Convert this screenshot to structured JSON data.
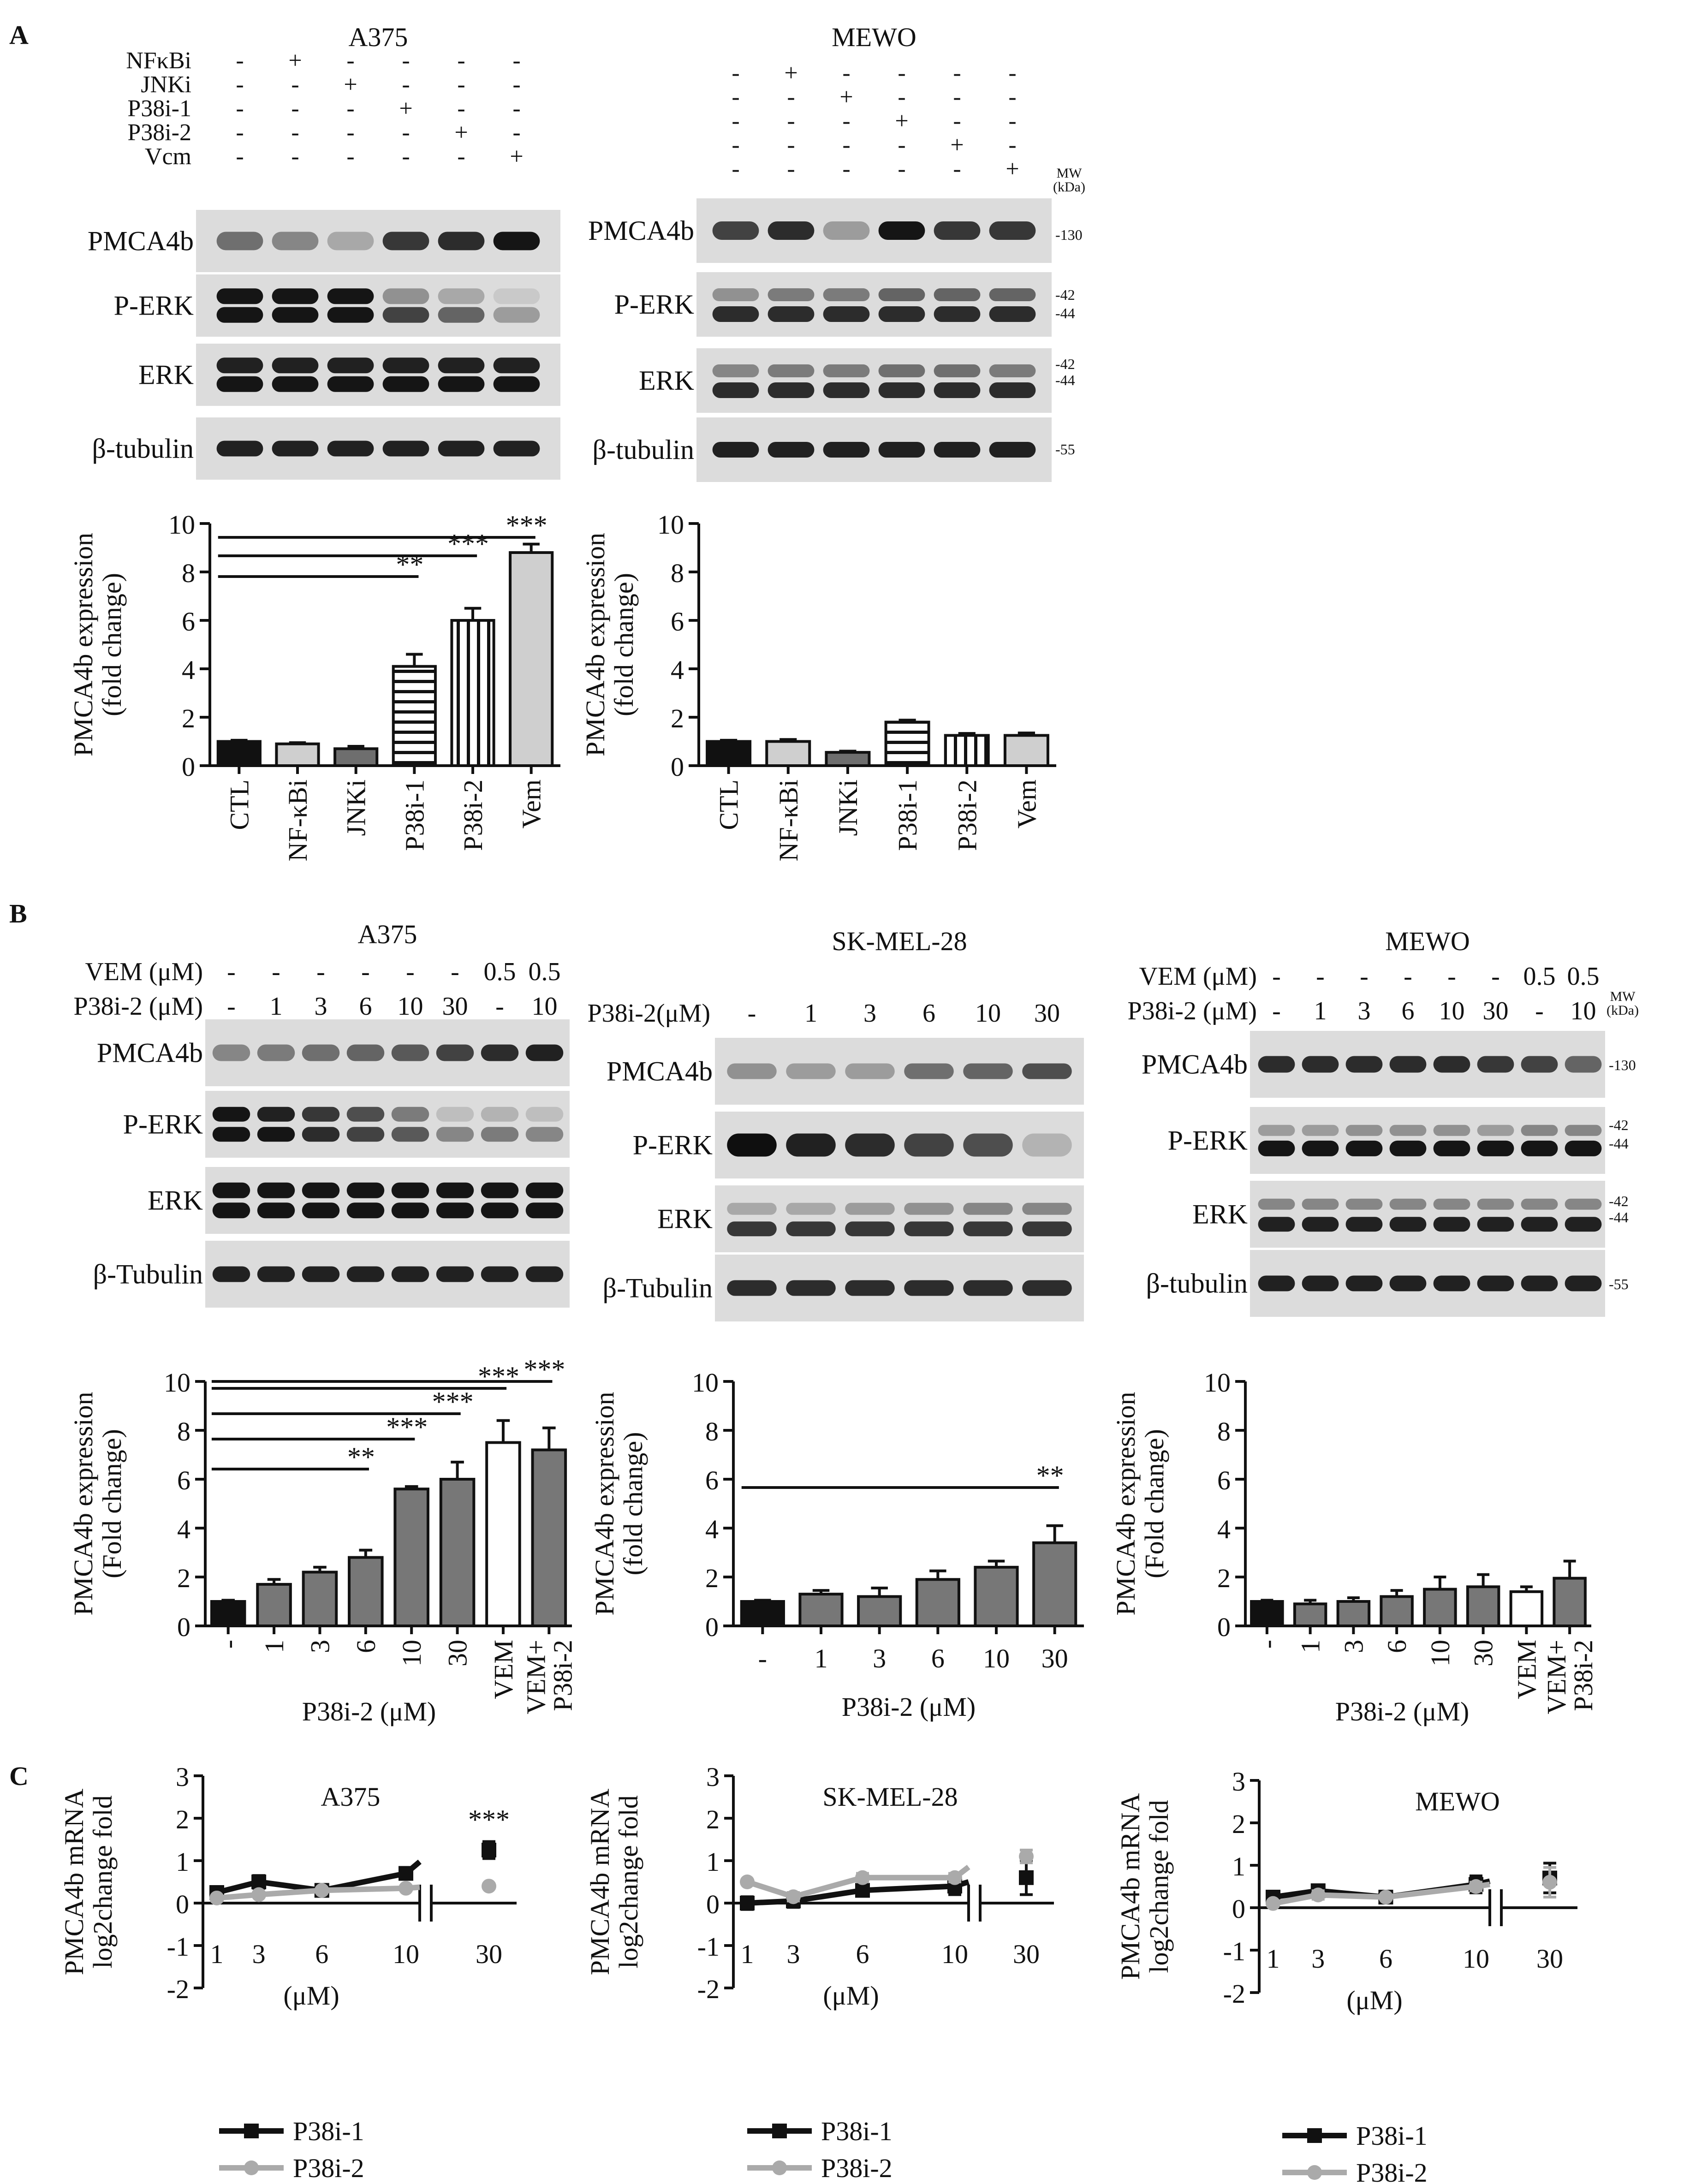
{
  "figure": {
    "panel_labels": {
      "A": "A",
      "B": "B",
      "C": "C"
    },
    "mw_header": [
      "MW",
      "(kDa)"
    ],
    "mw_labels": {
      "k130": "-130",
      "k42": "-42",
      "k44": "-44",
      "k55": "-55"
    }
  },
  "panel_a": {
    "blots": [
      {
        "title": "A375",
        "treatments": [
          {
            "label": "NFκBi",
            "marks": [
              "-",
              "+",
              "-",
              "-",
              "-",
              "-"
            ]
          },
          {
            "label": "JNKi",
            "marks": [
              "-",
              "-",
              "+",
              "-",
              "-",
              "-"
            ]
          },
          {
            "label": "P38i-1",
            "marks": [
              "-",
              "-",
              "-",
              "+",
              "-",
              "-"
            ]
          },
          {
            "label": "P38i-2",
            "marks": [
              "-",
              "-",
              "-",
              "-",
              "+",
              "-"
            ]
          },
          {
            "label": "Vcm",
            "marks": [
              "-",
              "-",
              "-",
              "-",
              "-",
              "+"
            ]
          }
        ],
        "rows": [
          "PMCA4b",
          "P-ERK",
          "ERK",
          "β-tubulin"
        ]
      },
      {
        "title": "MEWO",
        "treatments": [
          {
            "label": "",
            "marks": [
              "-",
              "+",
              "-",
              "-",
              "-",
              "-"
            ]
          },
          {
            "label": "",
            "marks": [
              "-",
              "-",
              "+",
              "-",
              "-",
              "-"
            ]
          },
          {
            "label": "",
            "marks": [
              "-",
              "-",
              "-",
              "+",
              "-",
              "-"
            ]
          },
          {
            "label": "",
            "marks": [
              "-",
              "-",
              "-",
              "-",
              "+",
              "-"
            ]
          },
          {
            "label": "",
            "marks": [
              "-",
              "-",
              "-",
              "-",
              "-",
              "+"
            ]
          }
        ],
        "rows": [
          "PMCA4b",
          "P-ERK",
          "ERK",
          "β-tubulin"
        ]
      }
    ]
  },
  "panel_b": {
    "blots": [
      {
        "title": "A375",
        "treatments": [
          {
            "label": "VEM (μM)",
            "marks": [
              "-",
              "-",
              "-",
              "-",
              "-",
              "-",
              "0.5",
              "0.5"
            ]
          },
          {
            "label": "P38i-2 (μM)",
            "marks": [
              "-",
              "1",
              "3",
              "6",
              "10",
              "30",
              "-",
              "10"
            ]
          }
        ],
        "rows": [
          "PMCA4b",
          "P-ERK",
          "ERK",
          "β-Tubulin"
        ]
      },
      {
        "title": "SK-MEL-28",
        "treatments": [
          {
            "label": "P38i-2(μM)",
            "marks": [
              "-",
              "1",
              "3",
              "6",
              "10",
              "30"
            ]
          }
        ],
        "rows": [
          "PMCA4b",
          "P-ERK",
          "ERK",
          "β-Tubulin"
        ]
      },
      {
        "title": "MEWO",
        "treatments": [
          {
            "label": "VEM (μM)",
            "marks": [
              "-",
              "-",
              "-",
              "-",
              "-",
              "-",
              "0.5",
              "0.5"
            ]
          },
          {
            "label": "P38i-2 (μM)",
            "marks": [
              "-",
              "1",
              "3",
              "6",
              "10",
              "30",
              "-",
              "10"
            ]
          }
        ],
        "rows": [
          "PMCA4b",
          "P-ERK",
          "ERK",
          "β-tubulin"
        ]
      }
    ]
  },
  "panel_c_legend": {
    "s1": "P38i-1",
    "s2": "P38i-2"
  },
  "chart_data": [
    {
      "id": "A1",
      "type": "bar",
      "panel": "A",
      "cell_line": "A375",
      "categories": [
        "CTL",
        "NF-κBi",
        "JNKi",
        "P38i-1",
        "P38i-2",
        "Vem"
      ],
      "values": [
        1.0,
        0.9,
        0.7,
        4.1,
        6.0,
        8.8
      ],
      "errors": [
        0.05,
        0.05,
        0.1,
        0.5,
        0.5,
        0.35
      ],
      "patterns": [
        "black",
        "lightgray",
        "darkgray",
        "hstripe",
        "vstripe",
        "lightgray"
      ],
      "ylabel": [
        "PMCA4b expression",
        "(fold change)"
      ],
      "xlabel": "",
      "ylim": [
        0,
        10
      ],
      "yticks": [
        0,
        2,
        4,
        6,
        8,
        10
      ],
      "significance": [
        {
          "from": 0,
          "to": 3,
          "label": "**"
        },
        {
          "from": 0,
          "to": 4,
          "label": "***"
        },
        {
          "from": 0,
          "to": 5,
          "label": "***"
        }
      ]
    },
    {
      "id": "A2",
      "type": "bar",
      "panel": "A",
      "cell_line": "MEWO",
      "categories": [
        "CTL",
        "NF-κBi",
        "JNKi",
        "P38i-1",
        "P38i-2",
        "Vem"
      ],
      "values": [
        1.0,
        1.0,
        0.55,
        1.8,
        1.25,
        1.25
      ],
      "errors": [
        0.05,
        0.08,
        0.05,
        0.08,
        0.08,
        0.1
      ],
      "patterns": [
        "black",
        "lightgray",
        "darkgray",
        "hstripe",
        "vstripe",
        "lightgray"
      ],
      "ylabel": [
        "PMCA4b expression",
        "(fold change)"
      ],
      "xlabel": "",
      "ylim": [
        0,
        10
      ],
      "yticks": [
        0,
        2,
        4,
        6,
        8,
        10
      ],
      "significance": []
    },
    {
      "id": "B1",
      "type": "bar",
      "panel": "B",
      "cell_line": "A375",
      "categories": [
        "-",
        "1",
        "3",
        "6",
        "10",
        "30",
        "VEM",
        "VEM+ P38i-2"
      ],
      "values": [
        1.0,
        1.7,
        2.2,
        2.8,
        5.6,
        6.0,
        7.5,
        7.2
      ],
      "errors": [
        0.05,
        0.2,
        0.2,
        0.3,
        0.1,
        0.7,
        0.9,
        0.9
      ],
      "patterns": [
        "black",
        "gray",
        "gray",
        "gray",
        "gray",
        "gray",
        "white",
        "gray"
      ],
      "ylabel": [
        "PMCA4b expression",
        "(Fold change)"
      ],
      "xlabel": "P38i-2 (μM)",
      "ylim": [
        0,
        10
      ],
      "yticks": [
        0,
        2,
        4,
        6,
        8,
        10
      ],
      "significance": [
        {
          "from": 0,
          "to": 3,
          "label": "**"
        },
        {
          "from": 0,
          "to": 4,
          "label": "***"
        },
        {
          "from": 0,
          "to": 5,
          "label": "***"
        },
        {
          "from": 0,
          "to": 6,
          "label": "***"
        },
        {
          "from": 0,
          "to": 7,
          "label": "***"
        }
      ]
    },
    {
      "id": "B2",
      "type": "bar",
      "panel": "B",
      "cell_line": "SK-MEL-28",
      "categories": [
        "-",
        "1",
        "3",
        "6",
        "10",
        "30"
      ],
      "values": [
        1.0,
        1.3,
        1.2,
        1.9,
        2.4,
        3.4
      ],
      "errors": [
        0.05,
        0.15,
        0.35,
        0.35,
        0.25,
        0.7
      ],
      "patterns": [
        "black",
        "gray",
        "gray",
        "gray",
        "gray",
        "gray"
      ],
      "ylabel": [
        "PMCA4b expression",
        "(fold change)"
      ],
      "xlabel": "P38i-2 (μM)",
      "ylim": [
        0,
        10
      ],
      "yticks": [
        0,
        2,
        4,
        6,
        8,
        10
      ],
      "significance": [
        {
          "from": 0,
          "to": 5,
          "label": "**"
        }
      ]
    },
    {
      "id": "B3",
      "type": "bar",
      "panel": "B",
      "cell_line": "MEWO",
      "categories": [
        "-",
        "1",
        "3",
        "6",
        "10",
        "30",
        "VEM",
        "VEM+ P38i-2"
      ],
      "values": [
        1.0,
        0.9,
        1.0,
        1.2,
        1.5,
        1.6,
        1.4,
        1.95
      ],
      "errors": [
        0.05,
        0.15,
        0.15,
        0.25,
        0.5,
        0.5,
        0.2,
        0.7
      ],
      "patterns": [
        "black",
        "gray",
        "gray",
        "gray",
        "gray",
        "gray",
        "white",
        "gray"
      ],
      "ylabel": [
        "PMCA4b expression",
        "(Fold change)"
      ],
      "xlabel": "P38i-2 (μM)",
      "ylim": [
        0,
        10
      ],
      "yticks": [
        0,
        2,
        4,
        6,
        8,
        10
      ],
      "significance": []
    },
    {
      "id": "C1",
      "type": "line",
      "panel": "C",
      "title": "A375",
      "x": [
        1,
        3,
        6,
        10,
        30
      ],
      "xticks": [
        "1",
        "3",
        "6",
        "10",
        "30"
      ],
      "xlabel": "(μM)",
      "ylabel": [
        "PMCA4b mRNA",
        "log2change fold"
      ],
      "ylim": [
        -2,
        3
      ],
      "yticks": [
        -2,
        -1,
        0,
        1,
        2,
        3
      ],
      "series": [
        {
          "name": "P38i-1",
          "values": [
            0.25,
            0.5,
            0.3,
            0.7,
            1.25
          ],
          "errors": [
            0.05,
            0.15,
            0.05,
            0.12,
            0.2
          ],
          "color": "#111111"
        },
        {
          "name": "P38i-2",
          "values": [
            0.12,
            0.2,
            0.3,
            0.35,
            0.4
          ],
          "errors": [
            0.03,
            0.03,
            0.03,
            0.03,
            0.03
          ],
          "color": "#aaaaaa"
        }
      ],
      "annotations": [
        {
          "x": 30,
          "label": "***"
        }
      ]
    },
    {
      "id": "C2",
      "type": "line",
      "panel": "C",
      "title": "SK-MEL-28",
      "x": [
        1,
        3,
        6,
        10,
        30
      ],
      "xticks": [
        "1",
        "3",
        "6",
        "10",
        "30"
      ],
      "xlabel": "(μM)",
      "ylabel": [
        "PMCA4b mRNA",
        "log2change fold"
      ],
      "ylim": [
        -2,
        3
      ],
      "yticks": [
        -2,
        -1,
        0,
        1,
        2,
        3
      ],
      "series": [
        {
          "name": "P38i-1",
          "values": [
            0.0,
            0.05,
            0.3,
            0.4,
            0.6
          ],
          "errors": [
            0.15,
            0.15,
            0.1,
            0.2,
            0.4
          ],
          "color": "#111111"
        },
        {
          "name": "P38i-2",
          "values": [
            0.5,
            0.15,
            0.6,
            0.6,
            1.1
          ],
          "errors": [
            0.05,
            0.1,
            0.1,
            0.1,
            0.15
          ],
          "color": "#aaaaaa"
        }
      ],
      "annotations": []
    },
    {
      "id": "C3",
      "type": "line",
      "panel": "C",
      "title": "MEWO",
      "x": [
        1,
        3,
        6,
        10,
        30
      ],
      "xticks": [
        "1",
        "3",
        "6",
        "10",
        "30"
      ],
      "xlabel": "(μM)",
      "ylabel": [
        "PMCA4b mRNA",
        "log2change fold"
      ],
      "ylim": [
        -2,
        3
      ],
      "yticks": [
        -2,
        -1,
        0,
        1,
        2,
        3
      ],
      "series": [
        {
          "name": "P38i-1",
          "values": [
            0.25,
            0.4,
            0.25,
            0.55,
            0.7
          ],
          "errors": [
            0.05,
            0.1,
            0.1,
            0.2,
            0.35
          ],
          "color": "#111111"
        },
        {
          "name": "P38i-2",
          "values": [
            0.1,
            0.3,
            0.25,
            0.5,
            0.6
          ],
          "errors": [
            0.05,
            0.1,
            0.05,
            0.1,
            0.35
          ],
          "color": "#aaaaaa"
        }
      ],
      "annotations": []
    }
  ]
}
